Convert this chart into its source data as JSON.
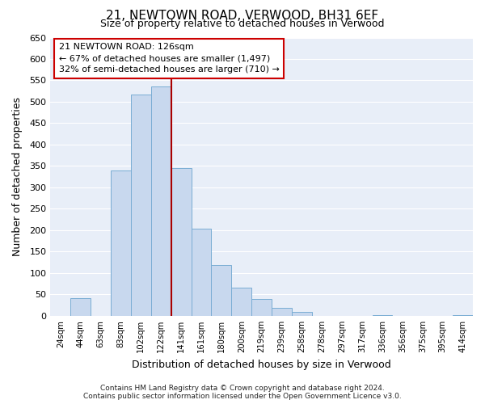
{
  "title": "21, NEWTOWN ROAD, VERWOOD, BH31 6EF",
  "subtitle": "Size of property relative to detached houses in Verwood",
  "xlabel": "Distribution of detached houses by size in Verwood",
  "ylabel": "Number of detached properties",
  "bar_labels": [
    "24sqm",
    "44sqm",
    "63sqm",
    "83sqm",
    "102sqm",
    "122sqm",
    "141sqm",
    "161sqm",
    "180sqm",
    "200sqm",
    "219sqm",
    "239sqm",
    "258sqm",
    "278sqm",
    "297sqm",
    "317sqm",
    "336sqm",
    "356sqm",
    "375sqm",
    "395sqm",
    "414sqm"
  ],
  "bar_values": [
    0,
    41,
    0,
    340,
    517,
    535,
    345,
    204,
    119,
    66,
    39,
    19,
    10,
    0,
    0,
    0,
    2,
    0,
    0,
    0,
    2
  ],
  "bar_color": "#c8d8ee",
  "bar_edge_color": "#7aadd4",
  "vline_color": "#aa0000",
  "vline_x_index": 5.5,
  "ylim": [
    0,
    650
  ],
  "yticks": [
    0,
    50,
    100,
    150,
    200,
    250,
    300,
    350,
    400,
    450,
    500,
    550,
    600,
    650
  ],
  "annotation_title": "21 NEWTOWN ROAD: 126sqm",
  "annotation_line1": "← 67% of detached houses are smaller (1,497)",
  "annotation_line2": "32% of semi-detached houses are larger (710) →",
  "annotation_box_edgecolor": "#cc0000",
  "bg_color": "#e8eef8",
  "grid_color": "#ffffff",
  "footer1": "Contains HM Land Registry data © Crown copyright and database right 2024.",
  "footer2": "Contains public sector information licensed under the Open Government Licence v3.0."
}
